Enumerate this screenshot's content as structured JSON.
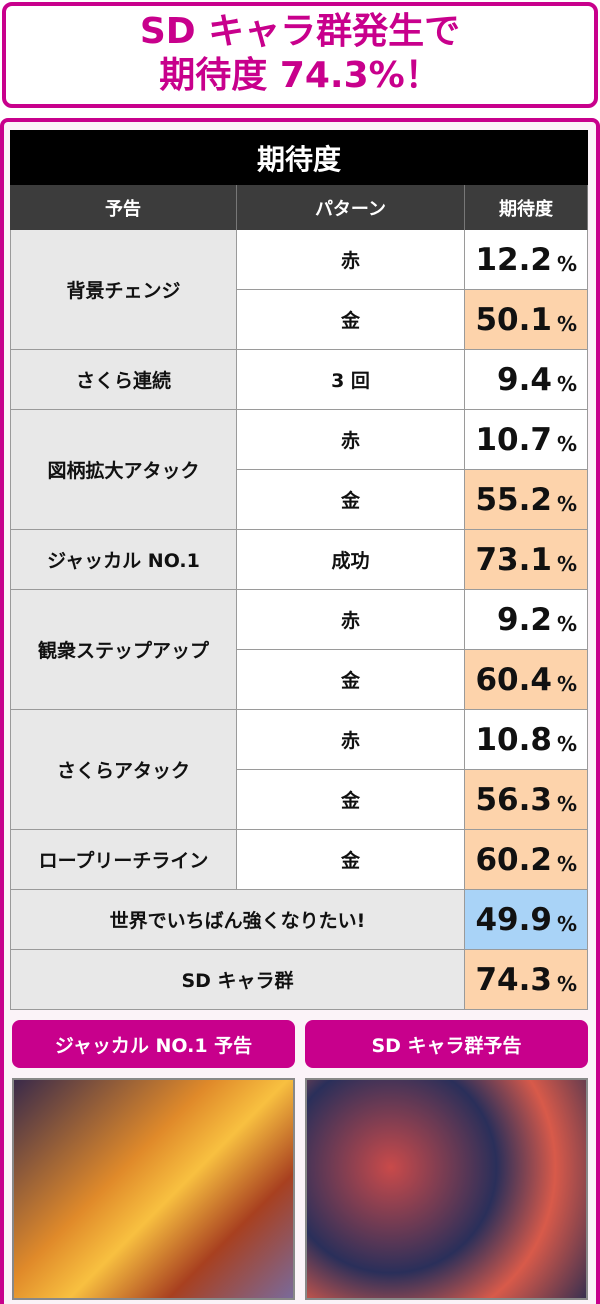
{
  "header": {
    "title": [
      "SD キャラ群発生で",
      "期待度 74.3%！"
    ]
  },
  "table": {
    "title": "期待度",
    "columns": [
      "予告",
      "パターン",
      "期待度"
    ],
    "unit": "%",
    "rows": [
      {
        "announce": "背景チェンジ",
        "patterns": [
          {
            "pattern": "赤",
            "value": 12.2,
            "color": "#ffffff"
          },
          {
            "pattern": "金",
            "value": 50.1,
            "color": "#fdd3ab"
          }
        ]
      },
      {
        "announce": "さくら連続",
        "patterns": [
          {
            "pattern": "3 回",
            "value": 9.4,
            "color": "#ffffff"
          }
        ]
      },
      {
        "announce": "図柄拡大アタック",
        "patterns": [
          {
            "pattern": "赤",
            "value": 10.7,
            "color": "#ffffff"
          },
          {
            "pattern": "金",
            "value": 55.2,
            "color": "#fdd3ab"
          }
        ]
      },
      {
        "announce": "ジャッカル NO.1",
        "patterns": [
          {
            "pattern": "成功",
            "value": 73.1,
            "color": "#fdd3ab"
          }
        ]
      },
      {
        "announce": "観衆ステップアップ",
        "patterns": [
          {
            "pattern": "赤",
            "value": 9.2,
            "color": "#ffffff"
          },
          {
            "pattern": "金",
            "value": 60.4,
            "color": "#fdd3ab"
          }
        ]
      },
      {
        "announce": "さくらアタック",
        "patterns": [
          {
            "pattern": "赤",
            "value": 10.8,
            "color": "#ffffff"
          },
          {
            "pattern": "金",
            "value": 56.3,
            "color": "#fdd3ab"
          }
        ]
      },
      {
        "announce": "ロープリーチライン",
        "patterns": [
          {
            "pattern": "金",
            "value": 60.2,
            "color": "#fdd3ab"
          }
        ]
      },
      {
        "announce": "世界でいちばん強くなりたい!",
        "value": 49.9,
        "color": "#a9d3f7"
      },
      {
        "announce": "SD キャラ群",
        "value": 74.3,
        "color": "#fdd3ab"
      }
    ]
  },
  "panels": [
    {
      "label": "ジャッカル NO.1 予告"
    },
    {
      "label": "SD キャラ群予告"
    }
  ]
}
